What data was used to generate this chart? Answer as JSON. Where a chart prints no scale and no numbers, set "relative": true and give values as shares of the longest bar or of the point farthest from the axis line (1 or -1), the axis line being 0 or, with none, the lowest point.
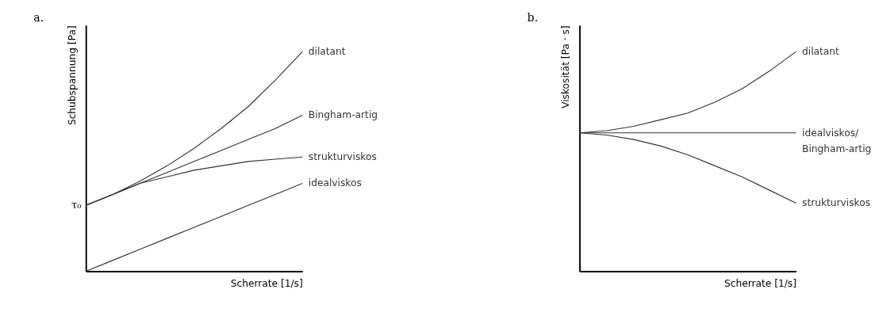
{
  "chart_data": [
    {
      "type": "line",
      "title": "a.",
      "xlabel": "Scherrate [1/s]",
      "ylabel": "Schubspannung [Pa]",
      "relative": true,
      "tick_labels": false,
      "grid": false,
      "categories": [
        null,
        null,
        null,
        null,
        null,
        null,
        null,
        null,
        null
      ],
      "annotations": [
        "τ₀"
      ],
      "series": [
        {
          "name": "dilatant",
          "color": "#333333",
          "values": [
            0.3,
            0.35,
            0.41,
            0.48,
            0.56,
            0.65,
            0.75,
            0.87,
            1.0
          ]
        },
        {
          "name": "Bingham-artig",
          "color": "#333333",
          "values": [
            0.3,
            0.35,
            0.4,
            0.45,
            0.5,
            0.55,
            0.6,
            0.65,
            0.71
          ]
        },
        {
          "name": "strukturviskos",
          "color": "#333333",
          "values": [
            0.3,
            0.35,
            0.4,
            0.43,
            0.46,
            0.48,
            0.5,
            0.51,
            0.52
          ]
        },
        {
          "name": "idealviskos",
          "color": "#333333",
          "values": [
            0.0,
            0.05,
            0.1,
            0.15,
            0.2,
            0.25,
            0.3,
            0.35,
            0.4
          ]
        }
      ]
    },
    {
      "type": "line",
      "title": "b.",
      "xlabel": "Scherrate [1/s]",
      "ylabel": "Viskosität [Pa · s]",
      "relative": true,
      "tick_labels": false,
      "grid": false,
      "categories": [
        null,
        null,
        null,
        null,
        null,
        null,
        null,
        null,
        null
      ],
      "series": [
        {
          "name": "dilatant",
          "color": "#333333",
          "values": [
            0.63,
            0.64,
            0.66,
            0.69,
            0.72,
            0.77,
            0.83,
            0.91,
            1.0
          ]
        },
        {
          "name": "idealviskos/\nBingham-artig",
          "color": "#333333",
          "values": [
            0.63,
            0.63,
            0.63,
            0.63,
            0.63,
            0.63,
            0.63,
            0.63,
            0.63
          ]
        },
        {
          "name": "strukturviskos",
          "color": "#333333",
          "values": [
            0.63,
            0.62,
            0.6,
            0.57,
            0.53,
            0.48,
            0.43,
            0.37,
            0.31
          ]
        }
      ]
    }
  ]
}
